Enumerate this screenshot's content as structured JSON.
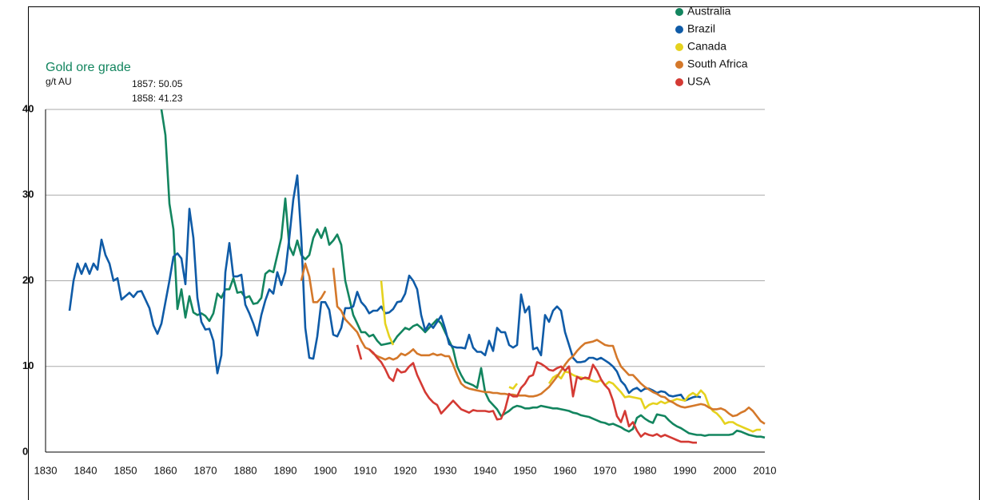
{
  "chart_data": {
    "type": "line",
    "title": "Gold ore grade",
    "y_label": "g/t AU",
    "annotations": [
      "1857: 50.05",
      "1858: 41.23"
    ],
    "xlim": [
      1830,
      2010
    ],
    "xticks": [
      1830,
      1840,
      1850,
      1860,
      1870,
      1880,
      1890,
      1900,
      1910,
      1920,
      1930,
      1940,
      1950,
      1960,
      1970,
      1980,
      1990,
      2000,
      2010
    ],
    "ylim": [
      0,
      40
    ],
    "yticks": [
      0,
      10,
      20,
      30,
      40
    ],
    "grid": true,
    "legend": "top-right",
    "series": [
      {
        "name": "Australia",
        "color": "#13855f",
        "x": [
          1857,
          1858,
          1859,
          1860,
          1861,
          1862,
          1863,
          1864,
          1865,
          1866,
          1867,
          1868,
          1869,
          1870,
          1871,
          1872,
          1873,
          1874,
          1875,
          1876,
          1877,
          1878,
          1879,
          1880,
          1881,
          1882,
          1883,
          1884,
          1885,
          1886,
          1887,
          1888,
          1889,
          1890,
          1891,
          1892,
          1893,
          1894,
          1895,
          1896,
          1897,
          1898,
          1899,
          1900,
          1901,
          1902,
          1903,
          1904,
          1905,
          1906,
          1907,
          1908,
          1909,
          1910,
          1911,
          1912,
          1913,
          1914,
          1915,
          1916,
          1917,
          1918,
          1919,
          1920,
          1921,
          1922,
          1923,
          1924,
          1925,
          1926,
          1927,
          1928,
          1929,
          1930,
          1931,
          1932,
          1933,
          1934,
          1935,
          1936,
          1937,
          1938,
          1939,
          1940,
          1941,
          1942,
          1943,
          1944,
          1945,
          1946,
          1947,
          1948,
          1949,
          1950,
          1951,
          1952,
          1953,
          1954,
          1955,
          1956,
          1957,
          1958,
          1959,
          1960,
          1961,
          1962,
          1963,
          1964,
          1965,
          1966,
          1967,
          1968,
          1969,
          1970,
          1971,
          1972,
          1973,
          1974,
          1975,
          1976,
          1977,
          1978,
          1979,
          1980,
          1981,
          1982,
          1983,
          1984,
          1985,
          1986,
          1987,
          1988,
          1989,
          1990,
          1991,
          1992,
          1993,
          1994,
          1995,
          1996,
          1997,
          1998,
          1999,
          2000,
          2001,
          2002,
          2003,
          2004,
          2005,
          2006,
          2007,
          2008,
          2009,
          2010
        ],
        "values": [
          50.05,
          41.23,
          40,
          37,
          29,
          26,
          16.7,
          19,
          15.7,
          18.2,
          16.3,
          16,
          16.2,
          15.9,
          15.3,
          16.2,
          18.5,
          18,
          19,
          19,
          20.3,
          18.6,
          18.7,
          18,
          18.2,
          17.3,
          17.4,
          18,
          20.8,
          21.2,
          21,
          23,
          25,
          29.6,
          24,
          23,
          24.7,
          23,
          22.5,
          23,
          25,
          26,
          25,
          26.2,
          24.2,
          24.7,
          25.4,
          24.2,
          20,
          18,
          16,
          15,
          14,
          14,
          13.5,
          13.7,
          13,
          12.5,
          12.6,
          12.7,
          12.8,
          13.5,
          14,
          14.5,
          14.3,
          14.7,
          14.9,
          14.5,
          14,
          14.5,
          15,
          15.5,
          15,
          14,
          13,
          12,
          10,
          9,
          8.2,
          8,
          7.8,
          7.5,
          9.8,
          7,
          6,
          5.5,
          5,
          4.2,
          4.5,
          4.8,
          5.2,
          5.4,
          5.3,
          5.1,
          5.1,
          5.2,
          5.2,
          5.4,
          5.3,
          5.2,
          5.1,
          5.1,
          5,
          4.9,
          4.8,
          4.6,
          4.5,
          4.3,
          4.2,
          4.1,
          3.9,
          3.7,
          3.5,
          3.4,
          3.2,
          3.3,
          3.1,
          2.9,
          2.6,
          2.4,
          2.7,
          4,
          4.3,
          3.9,
          3.6,
          3.4,
          4.4,
          4.3,
          4.2,
          3.7,
          3.3,
          3,
          2.8,
          2.5,
          2.2,
          2.1,
          2,
          2,
          1.9,
          2,
          2,
          2,
          2,
          2,
          2,
          2.1,
          2.5,
          2.4,
          2.2,
          2,
          1.9,
          1.8,
          1.8,
          1.7
        ]
      },
      {
        "name": "Brazil",
        "color": "#0f5ba7",
        "x": [
          1836,
          1837,
          1838,
          1839,
          1840,
          1841,
          1842,
          1843,
          1844,
          1845,
          1846,
          1847,
          1848,
          1849,
          1850,
          1851,
          1852,
          1853,
          1854,
          1855,
          1856,
          1857,
          1858,
          1859,
          1860,
          1861,
          1862,
          1863,
          1864,
          1865,
          1866,
          1867,
          1868,
          1869,
          1870,
          1871,
          1872,
          1873,
          1874,
          1875,
          1876,
          1877,
          1878,
          1879,
          1880,
          1881,
          1882,
          1883,
          1884,
          1885,
          1886,
          1887,
          1888,
          1889,
          1890,
          1891,
          1892,
          1893,
          1894,
          1895,
          1896,
          1897,
          1898,
          1899,
          1900,
          1901,
          1902,
          1903,
          1904,
          1905,
          1906,
          1907,
          1908,
          1909,
          1910,
          1911,
          1912,
          1913,
          1914,
          1915,
          1916,
          1917,
          1918,
          1919,
          1920,
          1921,
          1922,
          1923,
          1924,
          1925,
          1926,
          1927,
          1928,
          1929,
          1930,
          1931,
          1932,
          1933,
          1934,
          1935,
          1936,
          1937,
          1938,
          1939,
          1940,
          1941,
          1942,
          1943,
          1944,
          1945,
          1946,
          1947,
          1948,
          1949,
          1950,
          1951,
          1952,
          1953,
          1954,
          1955,
          1956,
          1957,
          1958,
          1959,
          1960,
          1961,
          1962,
          1963,
          1964,
          1965,
          1966,
          1967,
          1968,
          1969,
          1970,
          1971,
          1972,
          1973,
          1974,
          1975,
          1976,
          1977,
          1978,
          1979,
          1980,
          1981,
          1982,
          1983,
          1984,
          1985,
          1986,
          1987,
          1988,
          1989,
          1990,
          1991,
          1992,
          1993,
          1994
        ],
        "values": [
          16.5,
          20,
          22,
          20.8,
          22,
          20.8,
          22,
          21.3,
          24.8,
          23,
          22,
          20,
          20.3,
          17.8,
          18.2,
          18.6,
          18.1,
          18.7,
          18.8,
          17.8,
          16.8,
          14.8,
          13.8,
          15,
          17.5,
          20,
          22.8,
          23.2,
          22.6,
          19.6,
          28.4,
          25,
          18,
          15.2,
          14.3,
          14.4,
          13,
          9.2,
          11.3,
          21,
          24.4,
          20.5,
          20.5,
          20.7,
          17.2,
          16.2,
          15,
          13.6,
          16,
          17.7,
          19,
          18.5,
          21,
          19.5,
          21,
          25,
          29.5,
          32.3,
          25,
          14.5,
          11,
          10.9,
          13.5,
          17.5,
          17.5,
          16.6,
          13.7,
          13.5,
          14.5,
          16.8,
          16.8,
          17,
          18.7,
          17.5,
          17,
          16.2,
          16.5,
          16.5,
          17,
          16.2,
          16.3,
          16.7,
          17.5,
          17.6,
          18.5,
          20.6,
          20,
          19,
          16,
          14.2,
          15,
          14.5,
          15.2,
          15.9,
          14.4,
          12.6,
          12.3,
          12.2,
          12.2,
          12.1,
          13.7,
          12.2,
          11.7,
          11.7,
          11.3,
          13,
          11.8,
          14.5,
          14,
          14,
          12.5,
          12.2,
          12.5,
          18.4,
          16.3,
          17,
          12,
          12.2,
          11.3,
          16,
          15.2,
          16.5,
          17,
          16.5,
          14,
          12.5,
          11,
          10.5,
          10.5,
          10.6,
          11,
          11,
          10.8,
          11,
          10.7,
          10.4,
          10,
          9.4,
          8.3,
          7.8,
          6.9,
          7.3,
          7.5,
          7.1,
          7.4,
          7.4,
          7.2,
          6.9,
          7.1,
          7,
          6.6,
          6.5,
          6.6,
          6.7,
          6,
          6.2,
          6.4,
          6.5,
          6.4
        ]
      },
      {
        "name": "Canada",
        "color": "#e5d21e",
        "x": [
          1914,
          1915,
          1916,
          1917,
          1918,
          1946,
          1947,
          1948,
          1949,
          1956,
          1957,
          1958,
          1959,
          1960,
          1961,
          1962,
          1963,
          1964,
          1965,
          1966,
          1967,
          1968,
          1969,
          1970,
          1971,
          1972,
          1973,
          1974,
          1975,
          1976,
          1977,
          1978,
          1979,
          1980,
          1981,
          1982,
          1983,
          1984,
          1985,
          1986,
          1987,
          1988,
          1989,
          1990,
          1991,
          1992,
          1993,
          1994,
          1995,
          1996,
          1997,
          1998,
          1999,
          2000,
          2001,
          2002,
          2003,
          2004,
          2005,
          2006,
          2007,
          2008,
          2009
        ],
        "values": [
          20,
          15,
          13.5,
          12.5,
          null,
          7.6,
          7.4,
          8,
          null,
          8,
          8.7,
          9,
          8.6,
          9.4,
          9.3,
          9,
          8.8,
          8.7,
          8.6,
          8.5,
          8.3,
          8.2,
          8.4,
          7.8,
          8.2,
          8,
          7.5,
          7,
          6.4,
          6.5,
          6.4,
          6.3,
          6.2,
          5.1,
          5.5,
          5.7,
          5.6,
          5.9,
          5.7,
          5.9,
          6,
          6.2,
          6.1,
          6,
          6.6,
          6.9,
          6.6,
          7.2,
          6.7,
          5.4,
          4.8,
          4.5,
          4,
          3.3,
          3.5,
          3.5,
          3.2,
          3,
          2.8,
          2.6,
          2.4,
          2.6,
          2.6
        ]
      },
      {
        "name": "South Africa",
        "color": "#d4782a",
        "x": [
          1894,
          1895,
          1896,
          1897,
          1898,
          1899,
          1900,
          1901,
          1902,
          1903,
          1904,
          1905,
          1906,
          1907,
          1908,
          1909,
          1910,
          1911,
          1912,
          1913,
          1914,
          1915,
          1916,
          1917,
          1918,
          1919,
          1920,
          1921,
          1922,
          1923,
          1924,
          1925,
          1926,
          1927,
          1928,
          1929,
          1930,
          1931,
          1932,
          1933,
          1934,
          1935,
          1936,
          1937,
          1938,
          1939,
          1940,
          1941,
          1942,
          1943,
          1944,
          1945,
          1946,
          1947,
          1948,
          1949,
          1950,
          1951,
          1952,
          1953,
          1954,
          1955,
          1956,
          1957,
          1958,
          1959,
          1960,
          1961,
          1962,
          1963,
          1964,
          1965,
          1966,
          1967,
          1968,
          1969,
          1970,
          1971,
          1972,
          1973,
          1974,
          1975,
          1976,
          1977,
          1978,
          1979,
          1980,
          1981,
          1982,
          1983,
          1984,
          1985,
          1986,
          1987,
          1988,
          1989,
          1990,
          1991,
          1992,
          1993,
          1994,
          1995,
          1996,
          1997,
          1998,
          1999,
          2000,
          2001,
          2002,
          2003,
          2004,
          2005,
          2006,
          2007,
          2008,
          2009,
          2010
        ],
        "values": [
          20,
          22,
          20.5,
          17.5,
          17.5,
          18,
          18.8,
          null,
          21.5,
          17,
          16.5,
          15.5,
          15,
          14.5,
          14,
          13,
          12.2,
          12,
          11.5,
          11.2,
          11,
          10.8,
          11,
          10.8,
          11,
          11.5,
          11.3,
          11.6,
          12,
          11.5,
          11.3,
          11.3,
          11.3,
          11.5,
          11.3,
          11.4,
          11.2,
          11.2,
          10.2,
          9,
          8,
          7.6,
          7.4,
          7.3,
          7.2,
          7.1,
          7,
          7,
          6.9,
          6.9,
          6.8,
          6.8,
          6.7,
          6.7,
          6.6,
          6.6,
          6.6,
          6.5,
          6.5,
          6.6,
          6.8,
          7.2,
          7.6,
          8.2,
          8.8,
          9.5,
          10.2,
          10.8,
          11.2,
          11.8,
          12.3,
          12.7,
          12.8,
          12.9,
          13.1,
          12.8,
          12.5,
          12.4,
          12.4,
          11,
          10,
          9.5,
          9,
          9,
          8.5,
          8,
          7.6,
          7.3,
          7,
          6.8,
          6.5,
          6.4,
          6,
          5.8,
          5.5,
          5.3,
          5.2,
          5.3,
          5.4,
          5.5,
          5.6,
          5.5,
          5.2,
          5,
          5,
          5.1,
          4.9,
          4.5,
          4.2,
          4.3,
          4.6,
          4.8,
          5.2,
          4.8,
          4.2,
          3.6,
          3.3
        ]
      },
      {
        "name": "USA",
        "color": "#d43a34",
        "x": [
          1908,
          1909,
          1910,
          1911,
          1912,
          1913,
          1914,
          1915,
          1916,
          1917,
          1918,
          1919,
          1920,
          1921,
          1922,
          1923,
          1924,
          1925,
          1926,
          1927,
          1928,
          1929,
          1930,
          1931,
          1932,
          1933,
          1934,
          1935,
          1936,
          1937,
          1938,
          1939,
          1940,
          1941,
          1942,
          1943,
          1944,
          1945,
          1946,
          1947,
          1948,
          1949,
          1950,
          1951,
          1952,
          1953,
          1954,
          1955,
          1956,
          1957,
          1958,
          1959,
          1960,
          1961,
          1962,
          1963,
          1964,
          1965,
          1966,
          1967,
          1968,
          1969,
          1970,
          1971,
          1972,
          1973,
          1974,
          1975,
          1976,
          1977,
          1978,
          1979,
          1980,
          1981,
          1982,
          1983,
          1984,
          1985,
          1986,
          1987,
          1988,
          1989,
          1990,
          1991,
          1992,
          1993
        ],
        "values": [
          12.5,
          10.8,
          null,
          12,
          11.6,
          11,
          10.5,
          9.7,
          8.7,
          8.3,
          9.7,
          9.3,
          9.4,
          10,
          10.4,
          9,
          8,
          7,
          6.3,
          5.8,
          5.5,
          4.5,
          5,
          5.5,
          6,
          5.5,
          5,
          4.8,
          4.6,
          4.9,
          4.8,
          4.8,
          4.8,
          4.7,
          4.8,
          3.8,
          3.9,
          5,
          6.8,
          6.5,
          6.5,
          7.5,
          8,
          8.8,
          9,
          10.5,
          10.3,
          10,
          9.6,
          9.5,
          9.8,
          10,
          9.5,
          10,
          6.5,
          8.8,
          8.5,
          8.7,
          8.6,
          10.2,
          9.5,
          8.5,
          7.8,
          7.3,
          6,
          4.2,
          3.5,
          4.8,
          3,
          3.5,
          2.5,
          1.8,
          2.2,
          2,
          1.9,
          2.1,
          1.8,
          2,
          1.8,
          1.6,
          1.4,
          1.2,
          1.2,
          1.2,
          1.1,
          1.1
        ]
      }
    ]
  }
}
